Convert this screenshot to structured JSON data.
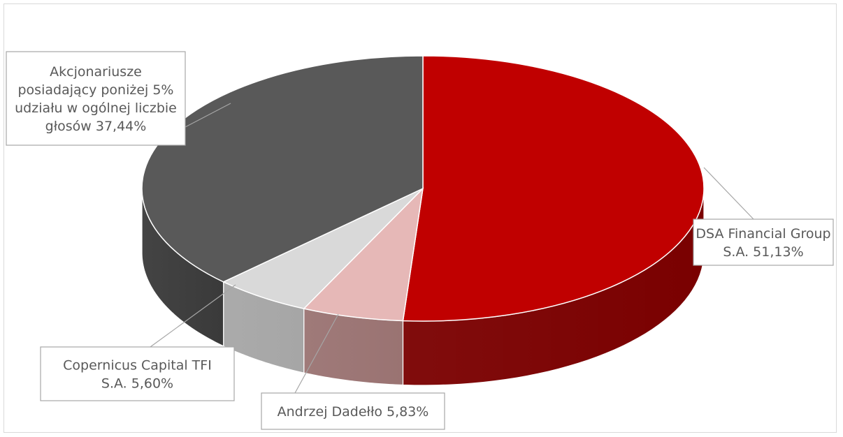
{
  "chart_data": {
    "type": "pie",
    "variant": "3d",
    "slices": [
      {
        "label_lines": [
          "DSA Financial Group",
          "S.A. 51,13%"
        ],
        "value": 51.13,
        "top_color": "#c00000",
        "side_color": "#7a0000"
      },
      {
        "label_lines": [
          "Andrzej Dadełło 5,83%"
        ],
        "value": 5.83,
        "top_color": "#e6b8b7",
        "side_color": "#9a7372"
      },
      {
        "label_lines": [
          "Copernicus Capital TFI",
          "S.A. 5,60%"
        ],
        "value": 5.6,
        "top_color": "#d9d9d9",
        "side_color": "#a6a6a6"
      },
      {
        "label_lines": [
          "Akcjonariusze",
          "posiadający poniżej 5%",
          "udziału w ogólnej liczbie",
          "głosów 37,44%"
        ],
        "value": 37.44,
        "top_color": "#595959",
        "side_color": "#3a3a3a"
      }
    ],
    "legend": "none",
    "data_labels": "outside-with-leader-lines"
  }
}
